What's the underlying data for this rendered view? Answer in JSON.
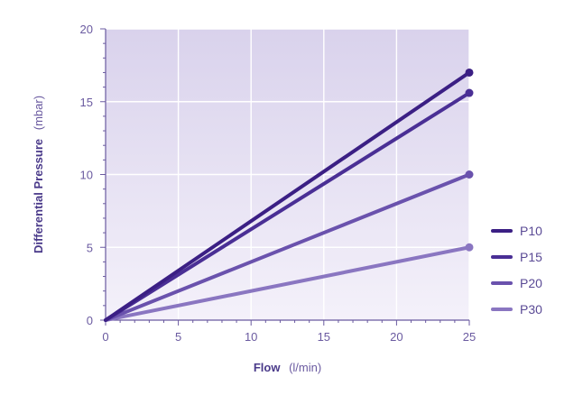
{
  "chart_data": {
    "type": "line",
    "xlabel_bold": "Flow",
    "xlabel_unit": "(l/min)",
    "ylabel_bold": "Differential Pressure",
    "ylabel_unit": "(mbar)",
    "xlim": [
      0,
      25
    ],
    "ylim": [
      0,
      20
    ],
    "xticks": [
      0,
      5,
      10,
      15,
      20,
      25
    ],
    "yticks": [
      0,
      5,
      10,
      15,
      20
    ],
    "grid": true,
    "legend_position": "right",
    "x": [
      0,
      25
    ],
    "series": [
      {
        "name": "P10",
        "values": [
          0,
          17.0
        ],
        "color": "#3b1f84"
      },
      {
        "name": "P15",
        "values": [
          0,
          15.6
        ],
        "color": "#4a2f95"
      },
      {
        "name": "P20",
        "values": [
          0,
          10.0
        ],
        "color": "#6a52ad"
      },
      {
        "name": "P30",
        "values": [
          0,
          5.0
        ],
        "color": "#8a76c1"
      }
    ]
  }
}
